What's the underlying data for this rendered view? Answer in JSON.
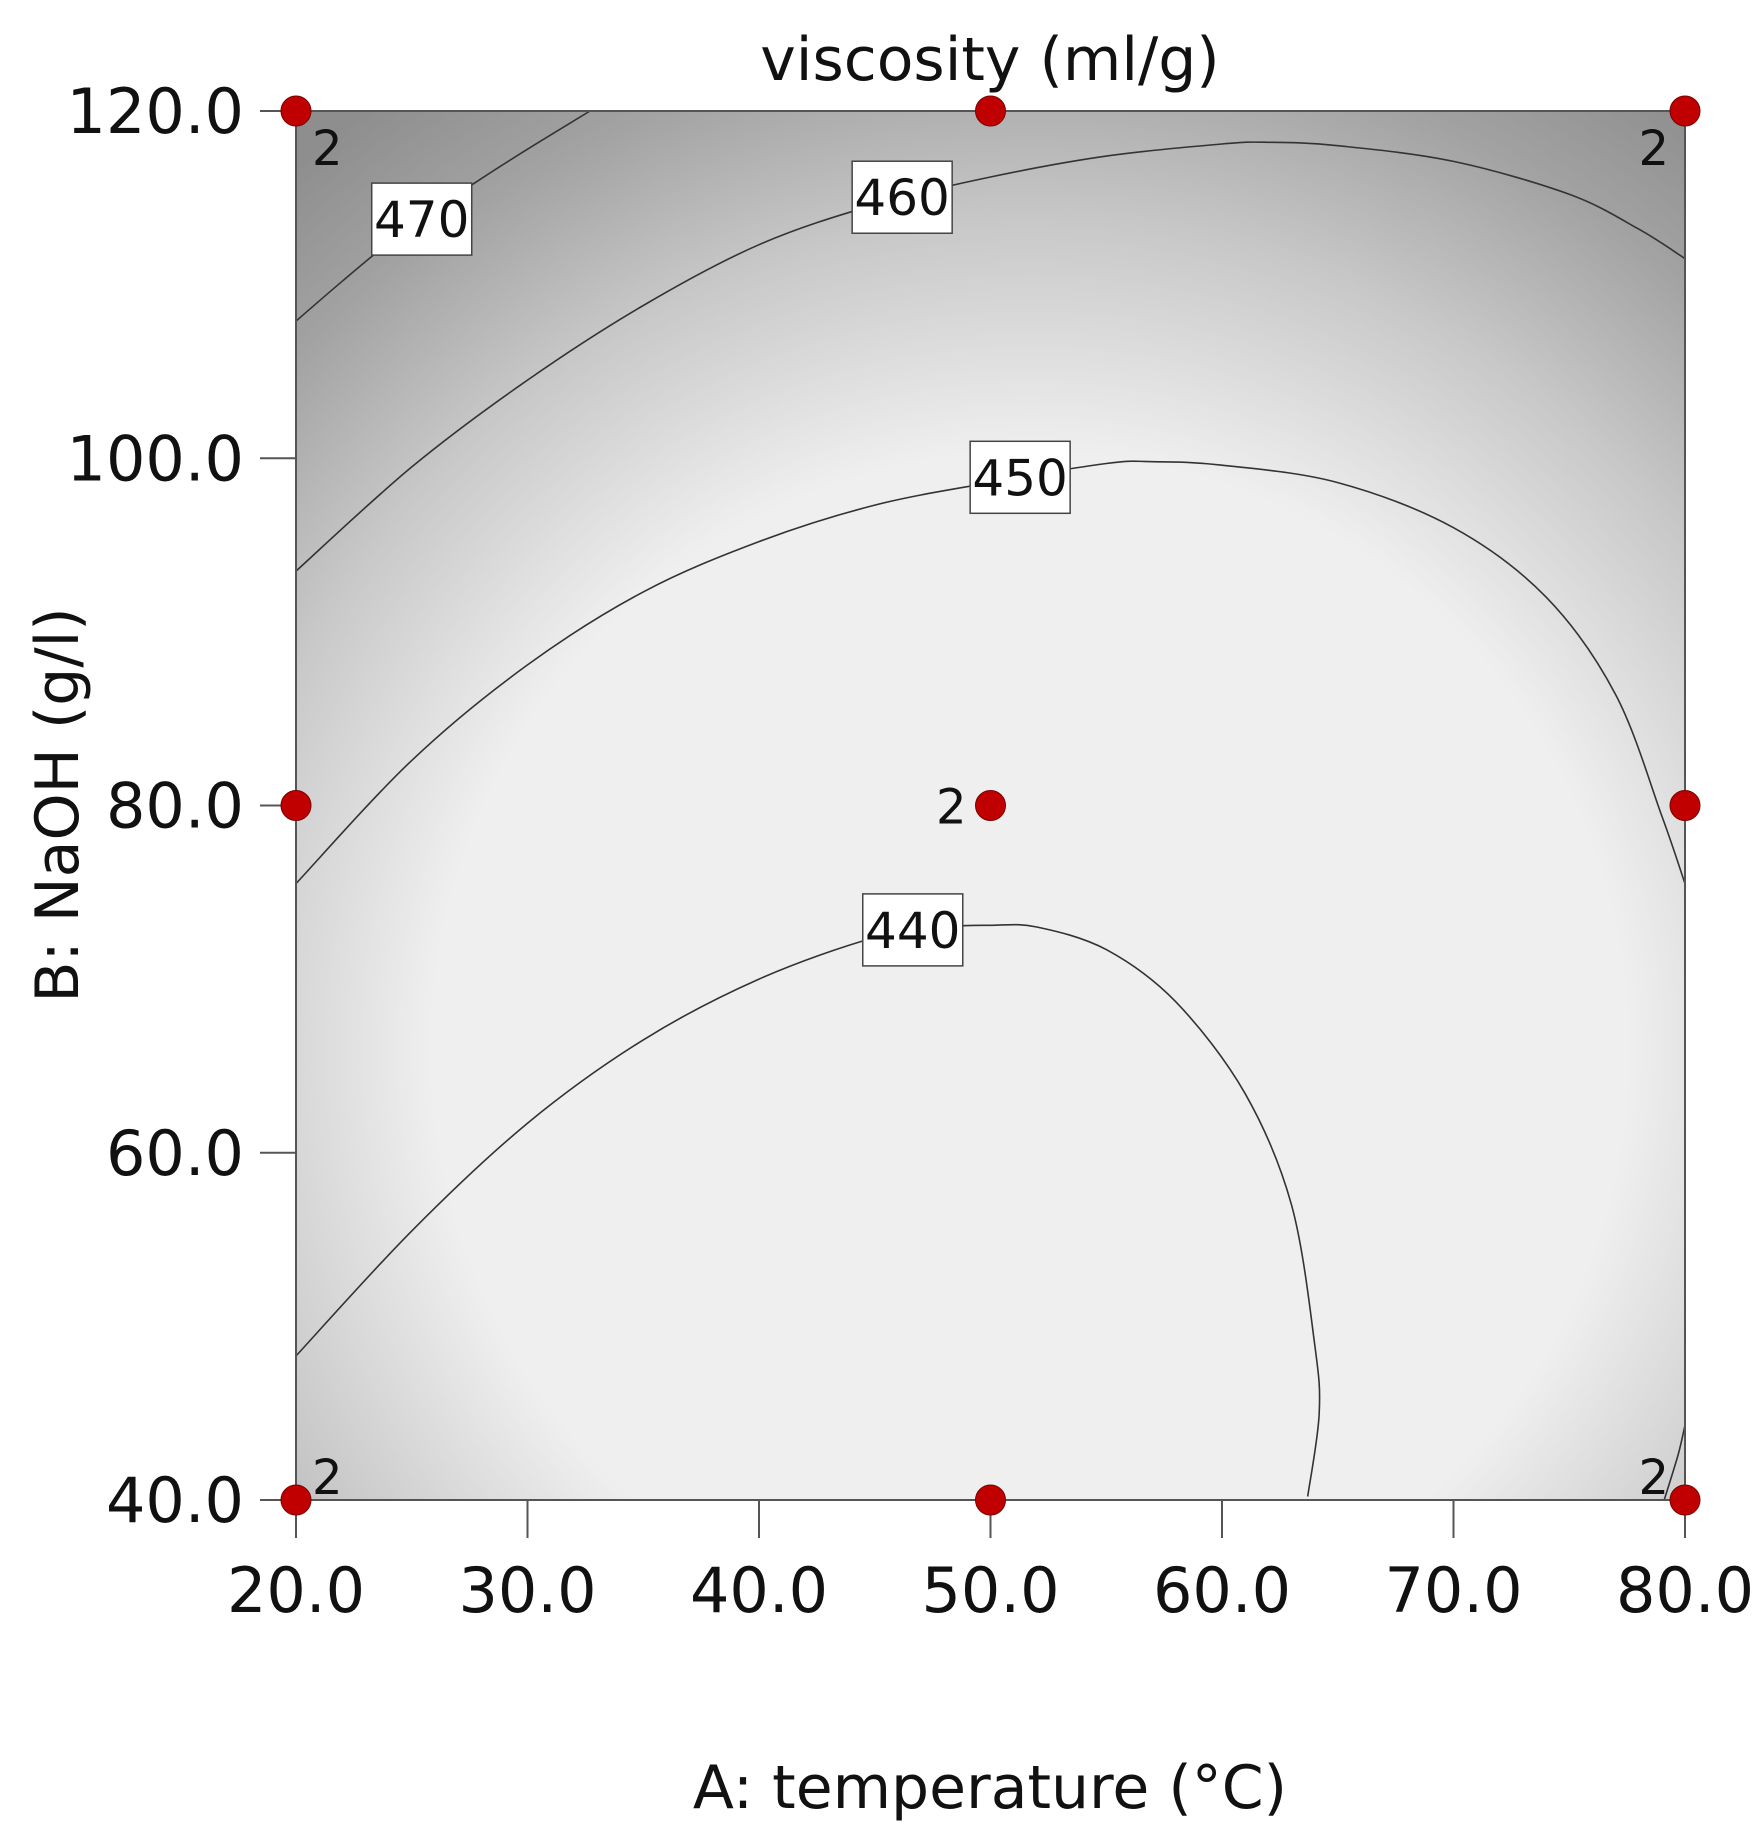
{
  "chart_data": {
    "type": "contour",
    "title": "viscosity (ml/g)",
    "xlabel": "A: temperature (°C)",
    "ylabel": "B: NaOH (g/l)",
    "xlim": [
      20,
      80
    ],
    "ylim": [
      40,
      120
    ],
    "x_ticks": [
      "20.0",
      "30.0",
      "40.0",
      "50.0",
      "60.0",
      "70.0",
      "80.0"
    ],
    "y_ticks": [
      "40.0",
      "60.0",
      "80.0",
      "100.0",
      "120.0"
    ],
    "colors": {
      "point": "#c00000",
      "low": "#efefef",
      "high": "#909090",
      "line": "#333333"
    },
    "contours": [
      {
        "level": "470",
        "points": [
          [
            20,
            107.9
          ],
          [
            22,
            110.2
          ],
          [
            24,
            112.4
          ],
          [
            26,
            114.3
          ],
          [
            28,
            116.1
          ],
          [
            30,
            117.8
          ],
          [
            32.7,
            120
          ]
        ]
      },
      {
        "level": "460",
        "points": [
          [
            20,
            93.5
          ],
          [
            25,
            99.5
          ],
          [
            30,
            104.5
          ],
          [
            35,
            108.8
          ],
          [
            40,
            112.3
          ],
          [
            45,
            114.6
          ],
          [
            50,
            116.2
          ],
          [
            55,
            117.4
          ],
          [
            60,
            118.1
          ],
          [
            62,
            118.2
          ],
          [
            65,
            118
          ],
          [
            70,
            117.1
          ],
          [
            75,
            115.2
          ],
          [
            78,
            113.2
          ],
          [
            80,
            111.5
          ]
        ]
      },
      {
        "level": "450",
        "points": [
          [
            20,
            75.5
          ],
          [
            25,
            82.6
          ],
          [
            30,
            88.1
          ],
          [
            35,
            92.3
          ],
          [
            40,
            95.2
          ],
          [
            45,
            97.3
          ],
          [
            50,
            98.6
          ],
          [
            55,
            99.7
          ],
          [
            57,
            99.8
          ],
          [
            60,
            99.6
          ],
          [
            65,
            98.6
          ],
          [
            70,
            96
          ],
          [
            74,
            92
          ],
          [
            77,
            86.4
          ],
          [
            79,
            79.4
          ],
          [
            80,
            75.5
          ]
        ]
      },
      {
        "level": "440",
        "points": [
          [
            20,
            48.3
          ],
          [
            25,
            55.5
          ],
          [
            30,
            61.7
          ],
          [
            35,
            66.5
          ],
          [
            40,
            70
          ],
          [
            45,
            72.4
          ],
          [
            48,
            73
          ],
          [
            50,
            73.1
          ],
          [
            52,
            73
          ],
          [
            55,
            71.7
          ],
          [
            58,
            68.7
          ],
          [
            61,
            63.4
          ],
          [
            63,
            57
          ],
          [
            64,
            49
          ],
          [
            64.2,
            45
          ],
          [
            63.7,
            40.2
          ]
        ]
      },
      {
        "level": "",
        "points": [
          [
            79.1,
            40
          ],
          [
            79.7,
            42.6
          ],
          [
            80,
            44.3
          ]
        ]
      }
    ],
    "design_points": [
      {
        "x": 20,
        "y": 120,
        "label": "2"
      },
      {
        "x": 50,
        "y": 120,
        "label": ""
      },
      {
        "x": 80,
        "y": 120,
        "label": "2"
      },
      {
        "x": 20,
        "y": 80,
        "label": ""
      },
      {
        "x": 50,
        "y": 80,
        "label": "2"
      },
      {
        "x": 80,
        "y": 80,
        "label": ""
      },
      {
        "x": 20,
        "y": 40,
        "label": "2"
      },
      {
        "x": 50,
        "y": 40,
        "label": ""
      },
      {
        "x": 80,
        "y": 40,
        "label": "2"
      }
    ]
  }
}
